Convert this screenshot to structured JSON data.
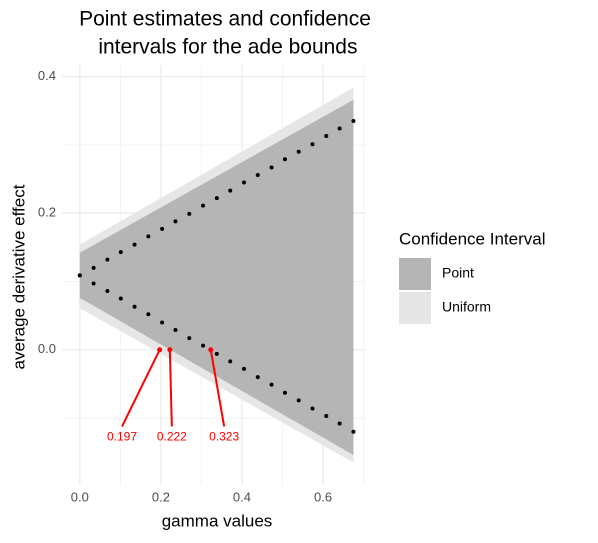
{
  "chart_data": {
    "type": "ribbon-scatter",
    "title": [
      "Point estimates and confidence",
      " intervals for the ade bounds"
    ],
    "x_label": "gamma values",
    "y_label": "average derivative effect",
    "xlim": [
      -0.044,
      0.706
    ],
    "ylim": [
      -0.198,
      0.417
    ],
    "xticks": [
      {
        "value": 0,
        "label": "0.0"
      },
      {
        "value": 0.2,
        "label": "0.2"
      },
      {
        "value": 0.4,
        "label": "0.4"
      },
      {
        "value": 0.6,
        "label": "0.6"
      }
    ],
    "yticks": [
      {
        "value": 0,
        "label": "0.0"
      },
      {
        "value": 0.2,
        "label": "0.2"
      },
      {
        "value": 0.4,
        "label": "0.4"
      }
    ],
    "grid": true,
    "legend_title": "Confidence Interval",
    "legend_position": "right",
    "ribbons": [
      {
        "name": "Point",
        "color": "#b5b5b5",
        "x": [
          0,
          0.675
        ],
        "lower": [
          0.076,
          -0.154
        ],
        "upper": [
          0.142,
          0.366
        ]
      },
      {
        "name": "Uniform",
        "color": "#e6e6e6",
        "x": [
          0,
          0.675
        ],
        "lower": [
          0.061,
          -0.165
        ],
        "upper": [
          0.154,
          0.384
        ]
      }
    ],
    "points": {
      "color": "#000000",
      "x": [
        0,
        0.034,
        0.068,
        0.101,
        0.135,
        0.169,
        0.203,
        0.236,
        0.27,
        0.304,
        0.338,
        0.371,
        0.405,
        0.439,
        0.473,
        0.506,
        0.54,
        0.574,
        0.608,
        0.641,
        0.675
      ],
      "upper": [
        0.109,
        0.12,
        0.132,
        0.143,
        0.154,
        0.166,
        0.177,
        0.188,
        0.199,
        0.211,
        0.222,
        0.233,
        0.245,
        0.256,
        0.267,
        0.279,
        0.29,
        0.301,
        0.313,
        0.324,
        0.335
      ],
      "lower": [
        0.109,
        0.097,
        0.086,
        0.075,
        0.063,
        0.052,
        0.04,
        0.029,
        0.017,
        0.006,
        -0.006,
        -0.017,
        -0.028,
        -0.04,
        -0.051,
        -0.063,
        -0.074,
        -0.086,
        -0.097,
        -0.108,
        -0.12
      ]
    },
    "annotations": {
      "color": "#ff0000",
      "items": [
        {
          "x": 0.197,
          "y": 0,
          "label_x": 0.104,
          "label_y": -0.124
        },
        {
          "x": 0.222,
          "y": 0,
          "label_x": 0.227,
          "label_y": -0.124
        },
        {
          "x": 0.323,
          "y": 0,
          "label_x": 0.356,
          "label_y": -0.124
        }
      ]
    }
  }
}
